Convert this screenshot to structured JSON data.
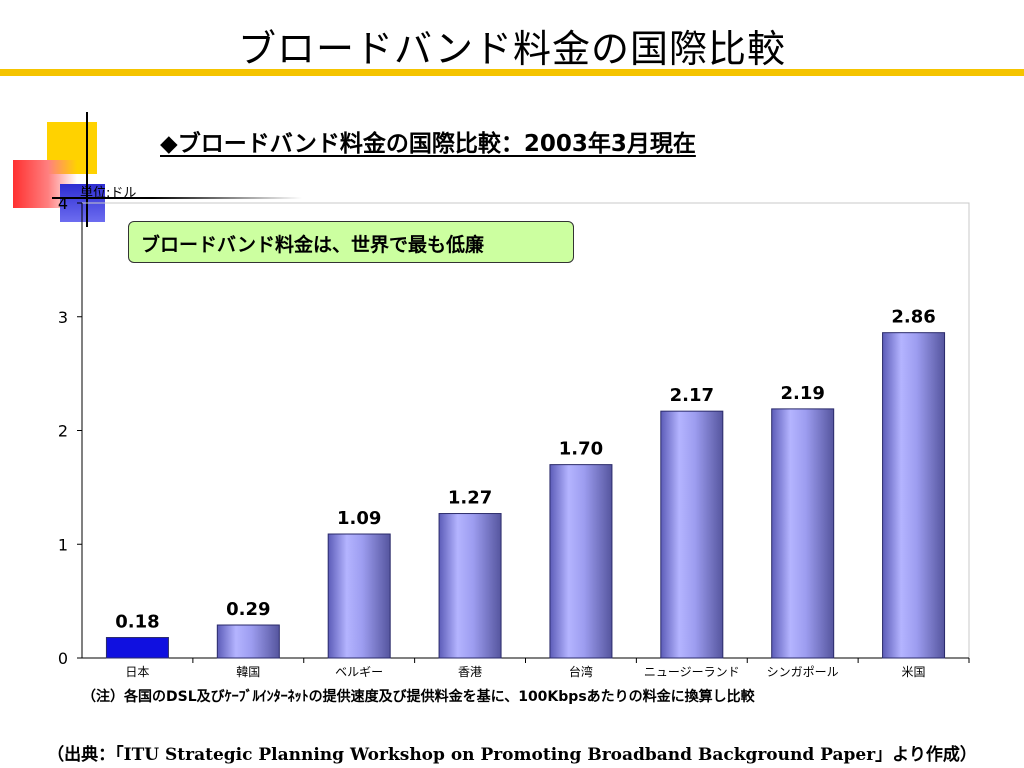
{
  "slide": {
    "title": "ブロードバンド料金の国際比較",
    "accent_color": "#f5c400"
  },
  "chart_data": {
    "type": "bar",
    "title": "◆ブロードバンド料金の国際比較：2003年3月現在",
    "unit_label": "単位:ドル",
    "callout": "ブロードバンド料金は、世界で最も低廉",
    "categories": [
      "日本",
      "韓国",
      "ベルギー",
      "香港",
      "台湾",
      "ニュージーランド",
      "シンガポール",
      "米国"
    ],
    "values": [
      0.18,
      0.29,
      1.09,
      1.27,
      1.7,
      2.17,
      2.19,
      2.86
    ],
    "value_labels": [
      "0.18",
      "0.29",
      "1.09",
      "1.27",
      "1.70",
      "2.17",
      "2.19",
      "2.86"
    ],
    "ylim": [
      0,
      4
    ],
    "yticks": [
      "0",
      "1",
      "2",
      "3",
      "4"
    ],
    "highlight_index": 0,
    "colors": {
      "highlight": "#1010e0",
      "bar": "#9a9aee",
      "bar_edge": "#2a2a6a"
    },
    "grid": false
  },
  "footnote": "（注）各国のDSL及びｹｰﾌﾞﾙｲﾝﾀｰﾈｯﾄの提供速度及び提供料金を基に、100Kbpsあたりの料金に換算し比較",
  "source": "（出典：「ITU Strategic Planning Workshop on Promoting Broadband Background Paper」より作成）"
}
